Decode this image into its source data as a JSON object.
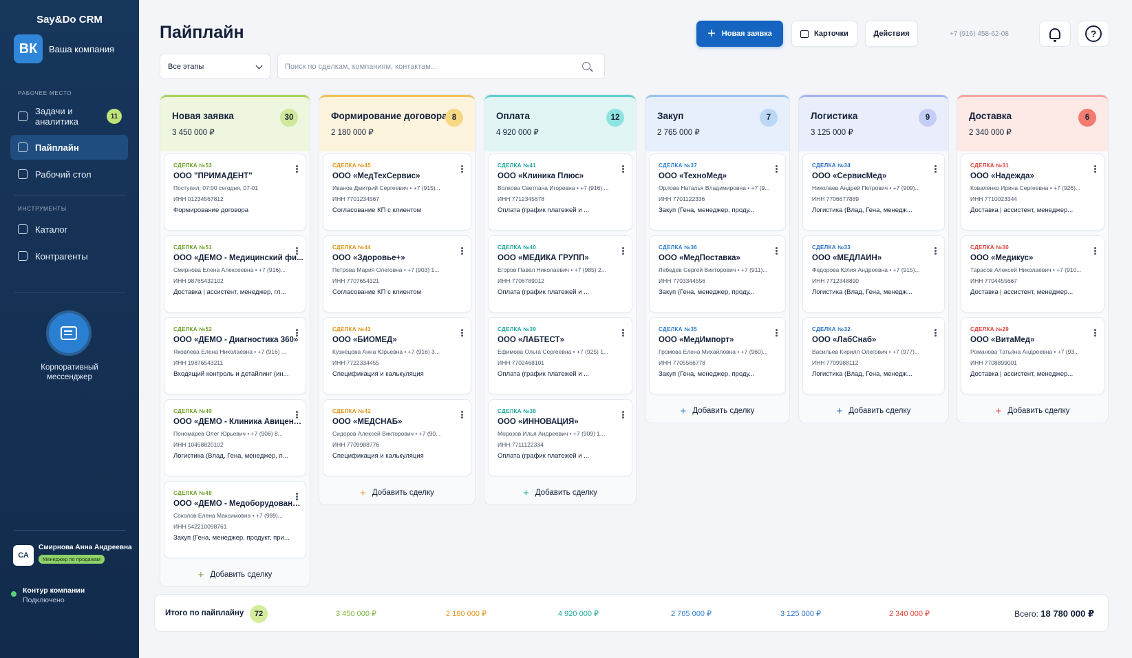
{
  "app": {
    "brand": "Say&Do CRM",
    "company_logo": "ВК",
    "company_name": "Ваша компания"
  },
  "sidebar": {
    "section_workspace": "Рабочее место",
    "section_tools": "Инструменты",
    "items": [
      {
        "label": "Задачи и аналитика",
        "icon": "tasks-icon",
        "badge": "11"
      },
      {
        "label": "Пайплайн",
        "icon": "pipeline-icon",
        "active": true
      },
      {
        "label": "Рабочий стол",
        "icon": "desktop-icon"
      },
      {
        "label": "Каталог",
        "icon": "catalog-icon"
      },
      {
        "label": "Контрагенты",
        "icon": "contractors-icon"
      }
    ],
    "messenger_label": "Корпоративный мессенджер",
    "user": {
      "initials": "СА",
      "name": "Смирнова Анна Андреевна",
      "role": "Менеджер по продажам"
    },
    "status": {
      "title": "Контур компании",
      "subtitle": "Подключено"
    }
  },
  "header": {
    "title": "Пайплайн",
    "new_request": "Новая заявка",
    "cards": "Карточки",
    "actions": "Действия",
    "phone": "+7 (916) 458-62-08",
    "stage_filter": "Все этапы",
    "search_placeholder": "Поиск по сделкам, компаниям, контактам..."
  },
  "add_deal_label": "Добавить сделку",
  "columns": [
    {
      "title": "Новая заявка",
      "sum": "3 450 000 ₽",
      "count": "30",
      "accent": "#a8d45a",
      "head_bg": "#eef6df",
      "badge_bg": "#cfe89a",
      "num_color": "#6fa22a",
      "cards": [
        {
          "num": "СДЕЛКА №53",
          "name": "ООО \"ПРИМАДЕНТ\"",
          "contact": "Поступил: 07:00 сегодня, 07-01",
          "inn": "ИНН 01234567812",
          "stage": "Формирование договора"
        },
        {
          "num": "СДЕЛКА №51",
          "name": "ООО «ДЕМО - Медицинский фи...",
          "contact": "Смирнова Елена Алексеевна • +7 (916)...",
          "inn": "ИНН 98765432102",
          "stage": "Доставка | ассистент, менеджер, гл..."
        },
        {
          "num": "СДЕЛКА №52",
          "name": "ООО «ДЕМО - Диагностика 360»",
          "contact": "Яковлева Елена Николаевна • +7 (916) ...",
          "inn": "ИНН 19876543211",
          "stage": "Входящий контроль и детайлинг (ин..."
        },
        {
          "num": "СДЕЛКА №49",
          "name": "ООО «ДЕМО - Клиника Авиценна»",
          "contact": "Пономарев Олег Юрьевич • +7 (906) 8...",
          "inn": "ИНН 10458820102",
          "stage": "Логистика (Влад, Гена, менеджер, п..."
        },
        {
          "num": "СДЕЛКА №48",
          "name": "ООО «ДЕМО - Медоборудование»",
          "contact": "Соколов Елена Максимовна • +7 (989)...",
          "inn": "ИНН 542210098761",
          "stage": "Закуп (Гена, менеджер, продукт, при..."
        }
      ]
    },
    {
      "title": "Формирование договора",
      "sum": "2 180 000 ₽",
      "count": "8",
      "accent": "#f3c25a",
      "head_bg": "#fdf4de",
      "badge_bg": "#f8d982",
      "num_color": "#e0951b",
      "cards": [
        {
          "num": "СДЕЛКА №45",
          "name": "ООО «МедТехСервис»",
          "contact": "Иванов Дмитрий Сергеевич • +7 (915)...",
          "inn": "ИНН 7701234567",
          "stage": "Согласование КП с клиентом"
        },
        {
          "num": "СДЕЛКА №44",
          "name": "ООО «Здоровье+»",
          "contact": "Петрова Мария Олеговна • +7 (903) 1...",
          "inn": "ИНН 7707654321",
          "stage": "Согласование КП с клиентом"
        },
        {
          "num": "СДЕЛКА №43",
          "name": "ООО «БИОМЕД»",
          "contact": "Кузнецова Анна Юрьевна • +7 (916) 3...",
          "inn": "ИНН 7722334455",
          "stage": "Спецификация и калькуляция"
        },
        {
          "num": "СДЕЛКА №42",
          "name": "ООО «МЕДСНАБ»",
          "contact": "Сидоров Алексей Викторович • +7 (90...",
          "inn": "ИНН 7709988776",
          "stage": "Спецификация и калькуляция"
        }
      ]
    },
    {
      "title": "Оплата",
      "sum": "4 920 000 ₽",
      "count": "12",
      "accent": "#5fd0cc",
      "head_bg": "#e0f5f4",
      "badge_bg": "#8de3df",
      "num_color": "#1fa5a0",
      "cards": [
        {
          "num": "СДЕЛКА №41",
          "name": "ООО «Клиника Плюс»",
          "contact": "Волкова Светлана Игоревна • +7 (916) ...",
          "inn": "ИНН 7712345678",
          "stage": "Оплата (график платежей и ..."
        },
        {
          "num": "СДЕЛКА №40",
          "name": "ООО «МЕДИКА ГРУПП»",
          "contact": "Егоров Павел Николаевич • +7 (985) 2...",
          "inn": "ИНН 7706789012",
          "stage": "Оплата (график платежей и ..."
        },
        {
          "num": "СДЕЛКА №39",
          "name": "ООО «ЛАБТЕСТ»",
          "contact": "Ефимова Ольга Сергеевна • +7 (925) 1...",
          "inn": "ИНН 7702468101",
          "stage": "Оплата (график платежей и ..."
        },
        {
          "num": "СДЕЛКА №38",
          "name": "ООО «ИННОВАЦИЯ»",
          "contact": "Морозов Илья Андреевич • +7 (909) 1...",
          "inn": "ИНН 7711122334",
          "stage": "Оплата (график платежей и ..."
        }
      ]
    },
    {
      "title": "Закуп",
      "sum": "2 765 000 ₽",
      "count": "7",
      "accent": "#9cc3ef",
      "head_bg": "#e6effb",
      "badge_bg": "#bcd7f6",
      "num_color": "#2f7fce",
      "cards": [
        {
          "num": "СДЕЛКА №37",
          "name": "ООО «ТехноМед»",
          "contact": "Орлова Наталья Владимировна • +7 (9...",
          "inn": "ИНН 7701122336",
          "stage": "Закуп (Гена, менеджер, проду..."
        },
        {
          "num": "СДЕЛКА №36",
          "name": "ООО «МедПоставка»",
          "contact": "Лебедев Сергей Викторович • +7 (911)...",
          "inn": "ИНН 7703344556",
          "stage": "Закуп (Гена, менеджер, проду..."
        },
        {
          "num": "СДЕЛКА №35",
          "name": "ООО «МедИмпорт»",
          "contact": "Громова Елена Михайловна • +7 (960)...",
          "inn": "ИНН 7705566778",
          "stage": "Закуп (Гена, менеджер, проду..."
        }
      ]
    },
    {
      "title": "Логистика",
      "sum": "3 125 000 ₽",
      "count": "9",
      "accent": "#a9b4ee",
      "head_bg": "#eaedfb",
      "badge_bg": "#c4cdf6",
      "num_color": "#2a6fc0",
      "cards": [
        {
          "num": "СДЕЛКА №34",
          "name": "ООО «СервисМед»",
          "contact": "Николаев Андрей Петрович • +7 (909)...",
          "inn": "ИНН 7706677889",
          "stage": "Логистика (Влад, Гена, менедж..."
        },
        {
          "num": "СДЕЛКА №33",
          "name": "ООО «МЕДЛАЙН»",
          "contact": "Федорова Юлия Андреевна • +7 (915)...",
          "inn": "ИНН 7712348890",
          "stage": "Логистика (Влад, Гена, менедж..."
        },
        {
          "num": "СДЕЛКА №32",
          "name": "ООО «ЛабСнаб»",
          "contact": "Васильев Кирилл Олегович • +7 (977)...",
          "inn": "ИНН 7709988112",
          "stage": "Логистика (Влад, Гена, менедж..."
        }
      ]
    },
    {
      "title": "Доставка",
      "sum": "2 340 000 ₽",
      "count": "6",
      "accent": "#f2a7a0",
      "head_bg": "#fde9e6",
      "badge_bg": "#f47b70",
      "num_color": "#e0433a",
      "cards": [
        {
          "num": "СДЕЛКА №31",
          "name": "ООО «Надежда»",
          "contact": "Коваленко Ирина Сергеевна • +7 (926)...",
          "inn": "ИНН 7710023344",
          "stage": "Доставка | ассистент, менеджер..."
        },
        {
          "num": "СДЕЛКА №30",
          "name": "ООО «Медикус»",
          "contact": "Тарасов Алексей Николаевич • +7 (910...",
          "inn": "ИНН 7704455667",
          "stage": "Доставка | ассистент, менеджер..."
        },
        {
          "num": "СДЕЛКА №29",
          "name": "ООО «ВитаМед»",
          "contact": "Романова Татьяна Андреевна • +7 (93...",
          "inn": "ИНН 7708899001",
          "stage": "Доставка | ассистент, менеджер..."
        }
      ]
    }
  ],
  "footer": {
    "label": "Итого по пайплайну",
    "count": "72",
    "values": [
      {
        "value": "3 450 000 ₽",
        "color": "#7bb33a"
      },
      {
        "value": "2 180 000 ₽",
        "color": "#e0951b"
      },
      {
        "value": "4 920 000 ₽",
        "color": "#1fa5a0"
      },
      {
        "value": "2 765 000 ₽",
        "color": "#2f7fce"
      },
      {
        "value": "3 125 000 ₽",
        "color": "#2a6fc0"
      },
      {
        "value": "2 340 000 ₽",
        "color": "#e0433a"
      }
    ],
    "total_label": "Всего:",
    "total_value": "18 780 000 ₽"
  }
}
